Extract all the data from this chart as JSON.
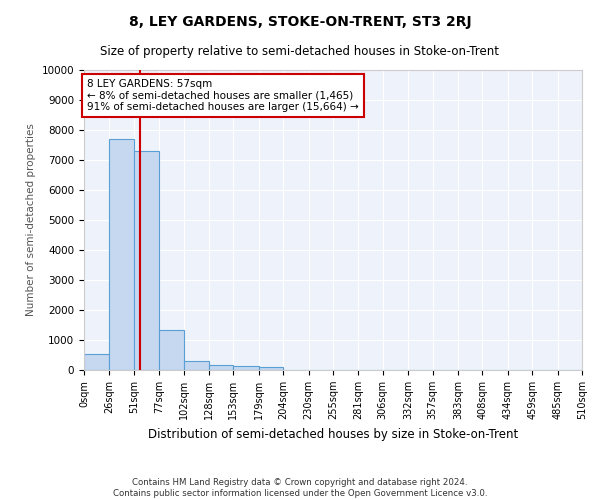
{
  "title": "8, LEY GARDENS, STOKE-ON-TRENT, ST3 2RJ",
  "subtitle": "Size of property relative to semi-detached houses in Stoke-on-Trent",
  "xlabel": "Distribution of semi-detached houses by size in Stoke-on-Trent",
  "ylabel": "Number of semi-detached properties",
  "bin_edges": [
    0,
    26,
    51,
    77,
    102,
    128,
    153,
    179,
    204,
    230,
    255,
    281,
    306,
    332,
    357,
    383,
    408,
    434,
    459,
    485,
    510
  ],
  "bin_labels": [
    "0sqm",
    "26sqm",
    "51sqm",
    "77sqm",
    "102sqm",
    "128sqm",
    "153sqm",
    "179sqm",
    "204sqm",
    "230sqm",
    "255sqm",
    "281sqm",
    "306sqm",
    "332sqm",
    "357sqm",
    "383sqm",
    "408sqm",
    "434sqm",
    "459sqm",
    "485sqm",
    "510sqm"
  ],
  "bar_heights": [
    550,
    7700,
    7300,
    1350,
    310,
    160,
    120,
    100,
    0,
    0,
    0,
    0,
    0,
    0,
    0,
    0,
    0,
    0,
    0,
    0
  ],
  "bar_color": "#c5d8f0",
  "bar_edge_color": "#5a9fd4",
  "property_size": 57,
  "property_label": "8 LEY GARDENS: 57sqm",
  "pct_smaller": 8,
  "n_smaller": 1465,
  "pct_larger": 91,
  "n_larger": 15664,
  "vline_color": "#cc0000",
  "annotation_box_color": "#cc0000",
  "ylim": [
    0,
    10000
  ],
  "yticks": [
    0,
    1000,
    2000,
    3000,
    4000,
    5000,
    6000,
    7000,
    8000,
    9000,
    10000
  ],
  "footer_line1": "Contains HM Land Registry data © Crown copyright and database right 2024.",
  "footer_line2": "Contains public sector information licensed under the Open Government Licence v3.0.",
  "bg_color": "#eef2fa",
  "grid_color": "#ffffff"
}
